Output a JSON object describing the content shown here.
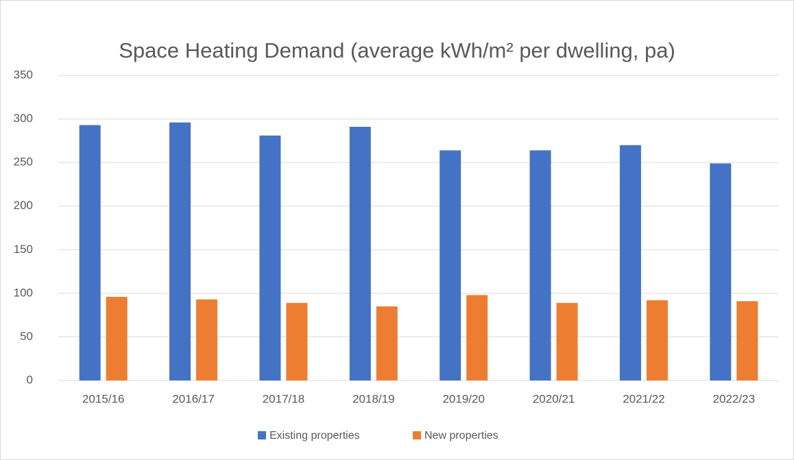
{
  "chart_data": {
    "type": "bar",
    "title": "Space Heating Demand (average kWh/m² per dwelling, pa)",
    "categories": [
      "2015/16",
      "2016/17",
      "2017/18",
      "2018/19",
      "2019/20",
      "2020/21",
      "2021/22",
      "2022/23"
    ],
    "series": [
      {
        "name": "Existing properties",
        "color": "#4472c4",
        "values": [
          293,
          296,
          281,
          291,
          264,
          264,
          270,
          249
        ]
      },
      {
        "name": "New properties",
        "color": "#ed7d31",
        "values": [
          96,
          93,
          89,
          85,
          98,
          89,
          92,
          91
        ]
      }
    ],
    "ylim": [
      0,
      350
    ],
    "yticks": [
      0,
      50,
      100,
      150,
      200,
      250,
      300,
      350
    ],
    "grid": true,
    "legend": "bottom"
  }
}
